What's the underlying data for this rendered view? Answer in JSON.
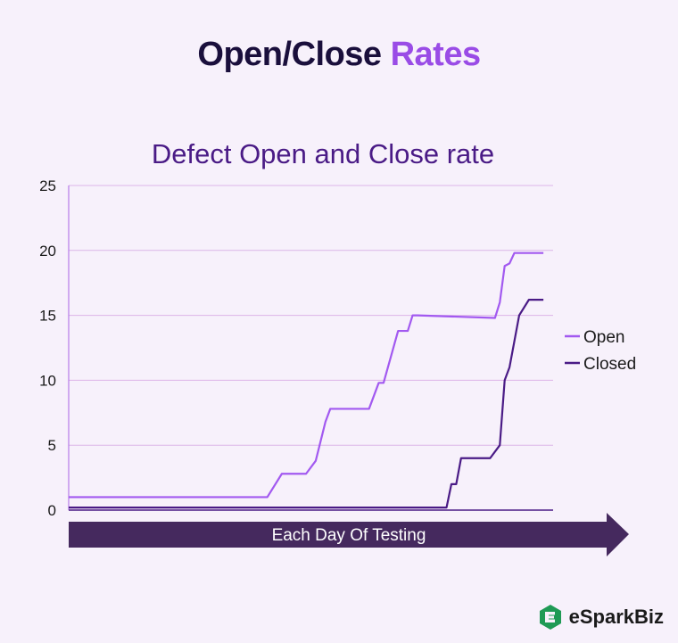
{
  "heading": {
    "part1": "Open/Close",
    "part2": "Rates"
  },
  "brand": {
    "name": "eSparkBiz",
    "icon": "esparkbiz-logo-icon",
    "color": "#1f9a55"
  },
  "chart_data": {
    "type": "line",
    "title": "Defect Open and Close rate",
    "xlabel": "Each Day Of Testing",
    "ylabel": "",
    "ylim": [
      0,
      25
    ],
    "yticks": [
      0,
      5,
      10,
      15,
      20,
      25
    ],
    "xlim": [
      0,
      100
    ],
    "grid": true,
    "legend": "right",
    "series": [
      {
        "name": "Open",
        "color": "#a259f0",
        "x": [
          0,
          41,
          44,
          49,
          51,
          53,
          54,
          62,
          64,
          65,
          68,
          70,
          71,
          72,
          88,
          89,
          90,
          91,
          92,
          98
        ],
        "y": [
          1,
          1,
          2.8,
          2.8,
          3.8,
          6.8,
          7.8,
          7.8,
          9.8,
          9.8,
          13.8,
          13.8,
          15,
          15,
          14.8,
          16,
          18.8,
          19,
          19.8,
          19.8
        ]
      },
      {
        "name": "Closed",
        "color": "#4a1b86",
        "x": [
          0,
          78,
          79,
          80,
          81,
          82,
          87,
          89,
          90,
          91,
          93,
          95,
          98
        ],
        "y": [
          0.2,
          0.2,
          2,
          2,
          4,
          4,
          4,
          5,
          10,
          11,
          15,
          16.2,
          16.2
        ]
      }
    ]
  }
}
